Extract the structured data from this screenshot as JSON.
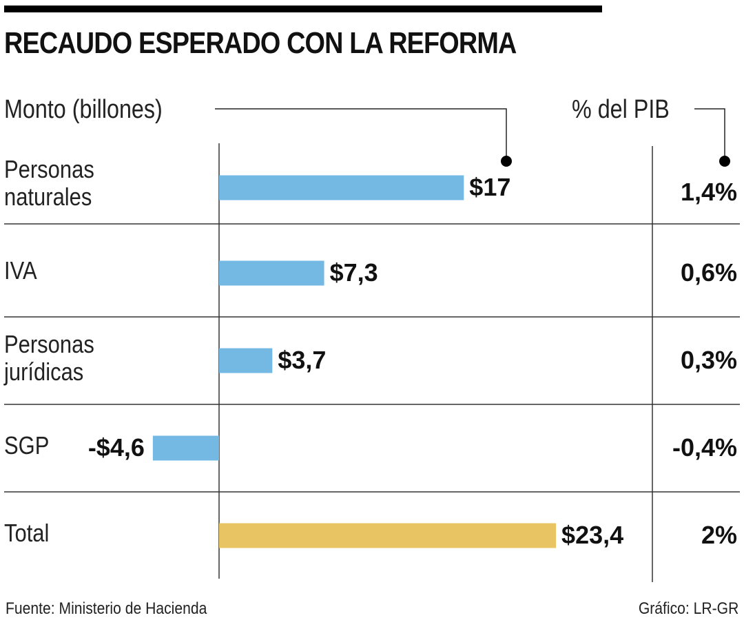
{
  "chart_data": {
    "type": "bar",
    "orientation": "horizontal",
    "title": "RECAUDO ESPERADO CON LA REFORMA",
    "xlabel": "Monto (billones)",
    "secondary_column_label": "% del PIB",
    "categories": [
      "Personas naturales",
      "IVA",
      "Personas jurídicas",
      "SGP",
      "Total"
    ],
    "category_lines": [
      [
        "Personas",
        "naturales"
      ],
      [
        "IVA"
      ],
      [
        "Personas",
        "jurídicas"
      ],
      [
        "SGP"
      ],
      [
        "Total"
      ]
    ],
    "values": [
      17,
      7.3,
      3.7,
      -4.6,
      23.4
    ],
    "value_labels": [
      "$17",
      "$7,3",
      "$3,7",
      "-$4,6",
      "$23,4"
    ],
    "pib_percent": [
      1.4,
      0.6,
      0.3,
      -0.4,
      2
    ],
    "pib_labels": [
      "1,4%",
      "0,6%",
      "0,3%",
      "-0,4%",
      "2%"
    ],
    "colors": [
      "#74b9e4",
      "#74b9e4",
      "#74b9e4",
      "#74b9e4",
      "#e8c463"
    ],
    "xlim": [
      -4.6,
      23.4
    ],
    "grid": false,
    "legend": "none"
  },
  "footer": {
    "source": "Fuente: Ministerio de Hacienda",
    "credit": "Gráfico: LR-GR"
  }
}
